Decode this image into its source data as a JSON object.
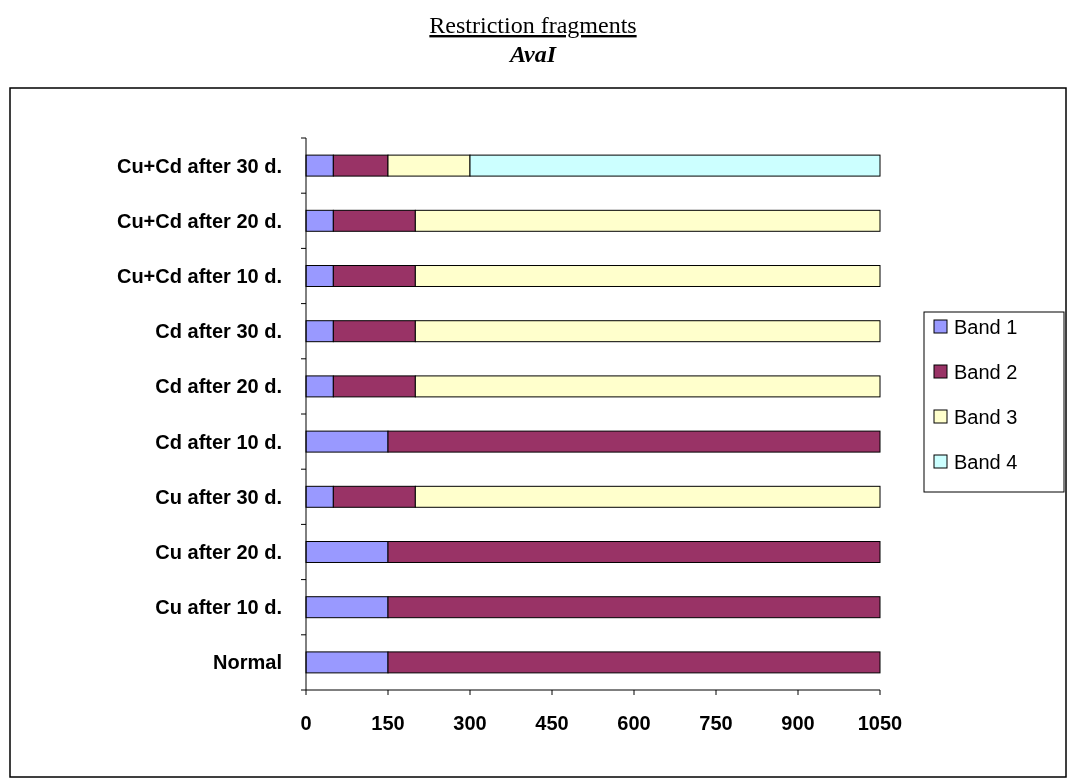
{
  "chart_data": {
    "type": "bar",
    "orientation": "horizontal",
    "stacked": true,
    "title": "Restriction fragments",
    "subtitle": "AvaI",
    "categories": [
      "Cu+Cd after 30 d.",
      "Cu+Cd after 20 d.",
      "Cu+Cd after 10 d.",
      "Cd after 30 d.",
      "Cd after 20 d.",
      "Cd after 10 d.",
      "Cu after 30 d.",
      "Cu after 20 d.",
      "Cu after 10 d.",
      "Normal"
    ],
    "series": [
      {
        "name": "Band 1",
        "color": "#9999ff",
        "values": [
          50,
          50,
          50,
          50,
          50,
          150,
          50,
          150,
          150,
          150
        ]
      },
      {
        "name": "Band 2",
        "color": "#993366",
        "values": [
          100,
          150,
          150,
          150,
          150,
          900,
          150,
          900,
          900,
          900
        ]
      },
      {
        "name": "Band 3",
        "color": "#ffffcc",
        "values": [
          150,
          850,
          850,
          850,
          850,
          null,
          850,
          null,
          null,
          null
        ]
      },
      {
        "name": "Band 4",
        "color": "#ccffff",
        "values": [
          750,
          null,
          null,
          null,
          null,
          null,
          null,
          null,
          null,
          null
        ]
      }
    ],
    "xlim": [
      0,
      1050
    ],
    "xticks": [
      0,
      150,
      300,
      450,
      600,
      750,
      900,
      1050
    ],
    "legend": "right"
  }
}
